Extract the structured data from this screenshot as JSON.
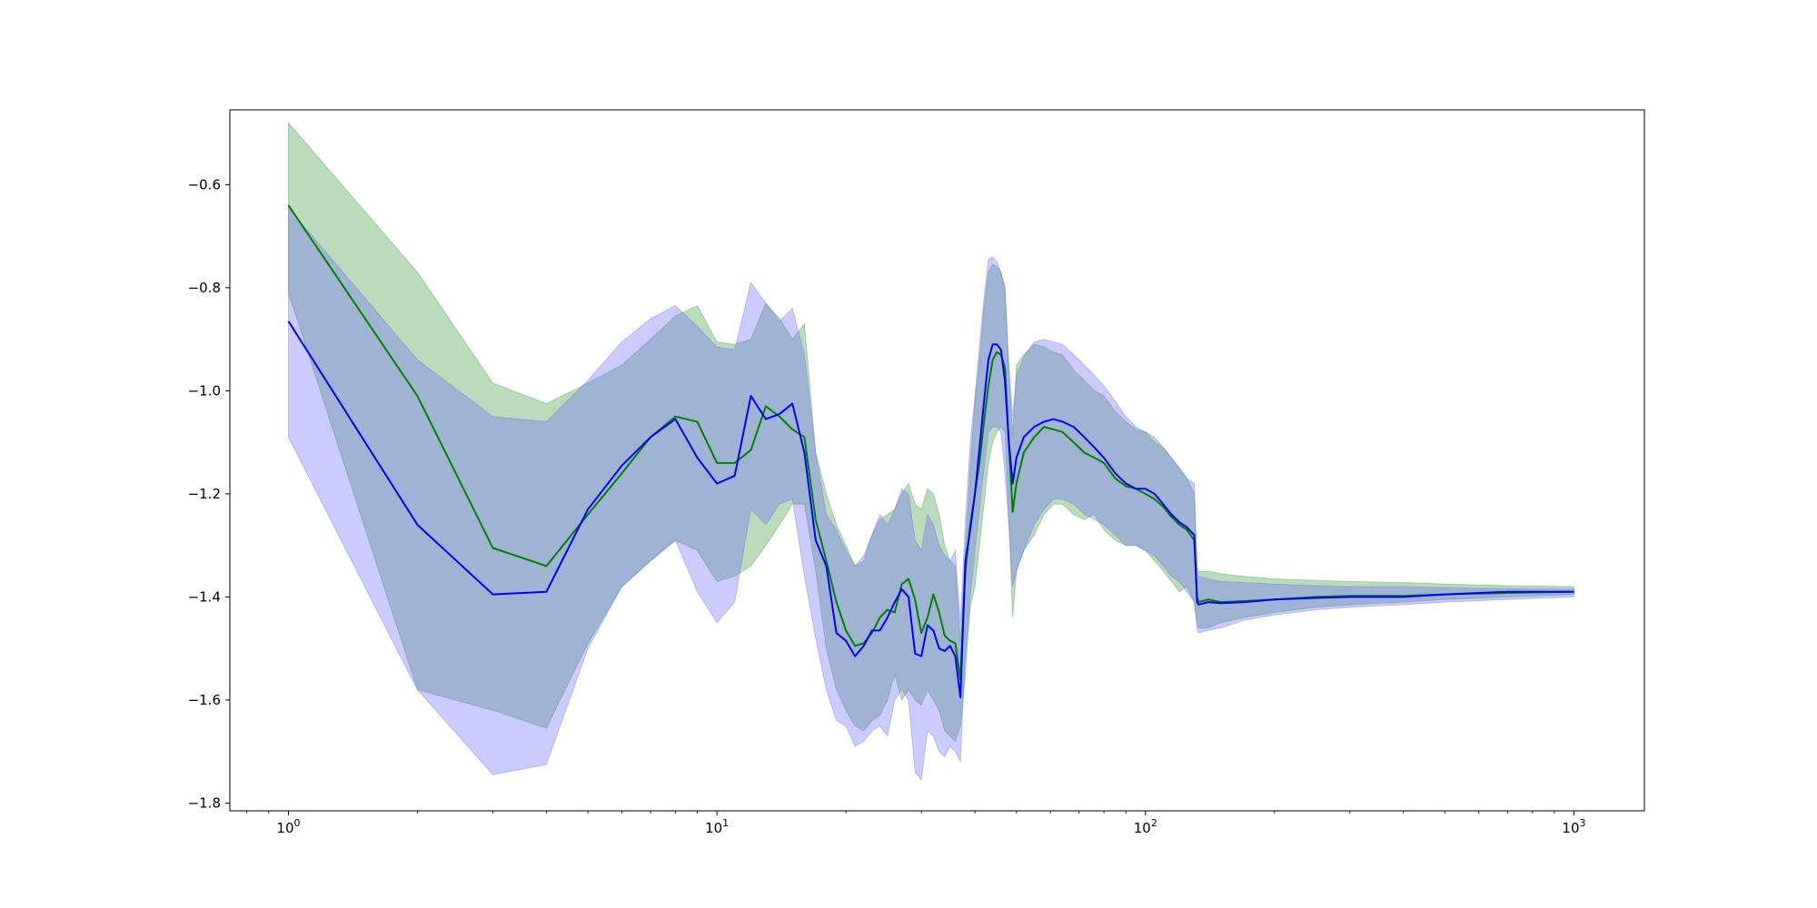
{
  "chart_data": {
    "type": "line",
    "title": "",
    "xlabel": "",
    "ylabel": "",
    "xscale": "log",
    "xlim": [
      0.73,
      1460
    ],
    "ylim": [
      -1.815,
      -0.455
    ],
    "grid": false,
    "yticks": [
      -0.6,
      -0.8,
      -1.0,
      -1.2,
      -1.4,
      -1.6,
      -1.8
    ],
    "ytick_labels": [
      "−0.6",
      "−0.8",
      "−1.0",
      "−1.2",
      "−1.4",
      "−1.6",
      "−1.8"
    ],
    "xticks": [
      {
        "value": 1,
        "base": "10",
        "exp": "0"
      },
      {
        "value": 10,
        "base": "10",
        "exp": "1"
      },
      {
        "value": 100,
        "base": "10",
        "exp": "2"
      },
      {
        "value": 1000,
        "base": "10",
        "exp": "3"
      }
    ],
    "series": [
      {
        "color": "#008000",
        "band_color": "#3a9a3a",
        "x": [
          1,
          2,
          3,
          4,
          5,
          6,
          7,
          8,
          9,
          10,
          11,
          12,
          13,
          14,
          15,
          16,
          17,
          18,
          19,
          20,
          21,
          22,
          23,
          24,
          25,
          26,
          27,
          28,
          29,
          30,
          31,
          32,
          33,
          34,
          35,
          36,
          37,
          38,
          39,
          40,
          41,
          42,
          43,
          44,
          45,
          46,
          47,
          48,
          49,
          50,
          52,
          55,
          58,
          61,
          64,
          68,
          72,
          76,
          80,
          85,
          90,
          95,
          100,
          105,
          110,
          115,
          120,
          125,
          130,
          132,
          133,
          140,
          150,
          170,
          200,
          250,
          300,
          400,
          500,
          700,
          1000
        ],
        "y": [
          -0.64,
          -1.01,
          -1.305,
          -1.34,
          -1.24,
          -1.16,
          -1.09,
          -1.05,
          -1.06,
          -1.14,
          -1.14,
          -1.115,
          -1.03,
          -1.05,
          -1.075,
          -1.09,
          -1.25,
          -1.33,
          -1.41,
          -1.465,
          -1.495,
          -1.49,
          -1.47,
          -1.44,
          -1.425,
          -1.43,
          -1.375,
          -1.365,
          -1.405,
          -1.47,
          -1.44,
          -1.395,
          -1.43,
          -1.475,
          -1.485,
          -1.49,
          -1.56,
          -1.35,
          -1.26,
          -1.2,
          -1.14,
          -1.06,
          -0.99,
          -0.94,
          -0.925,
          -0.93,
          -0.955,
          -1.1,
          -1.235,
          -1.18,
          -1.12,
          -1.09,
          -1.07,
          -1.075,
          -1.08,
          -1.1,
          -1.12,
          -1.13,
          -1.14,
          -1.17,
          -1.185,
          -1.19,
          -1.2,
          -1.21,
          -1.225,
          -1.245,
          -1.26,
          -1.27,
          -1.29,
          -1.4,
          -1.41,
          -1.405,
          -1.41,
          -1.408,
          -1.405,
          -1.4,
          -1.398,
          -1.398,
          -1.395,
          -1.392,
          -1.39
        ],
        "y_low": [
          -0.81,
          -1.58,
          -1.62,
          -1.655,
          -1.49,
          -1.38,
          -1.33,
          -1.29,
          -1.31,
          -1.37,
          -1.36,
          -1.34,
          -1.3,
          -1.26,
          -1.22,
          -1.22,
          -1.35,
          -1.5,
          -1.58,
          -1.62,
          -1.65,
          -1.66,
          -1.64,
          -1.63,
          -1.6,
          -1.55,
          -1.6,
          -1.58,
          -1.6,
          -1.61,
          -1.58,
          -1.6,
          -1.62,
          -1.66,
          -1.67,
          -1.68,
          -1.65,
          -1.55,
          -1.42,
          -1.38,
          -1.3,
          -1.22,
          -1.14,
          -1.1,
          -1.08,
          -1.07,
          -1.08,
          -1.25,
          -1.44,
          -1.35,
          -1.31,
          -1.28,
          -1.24,
          -1.22,
          -1.22,
          -1.24,
          -1.25,
          -1.24,
          -1.27,
          -1.29,
          -1.3,
          -1.3,
          -1.31,
          -1.33,
          -1.35,
          -1.37,
          -1.39,
          -1.38,
          -1.41,
          -1.45,
          -1.46,
          -1.46,
          -1.45,
          -1.44,
          -1.43,
          -1.42,
          -1.415,
          -1.41,
          -1.405,
          -1.4,
          -1.395
        ],
        "y_high": [
          -0.48,
          -0.77,
          -0.985,
          -1.025,
          -0.985,
          -0.95,
          -0.9,
          -0.855,
          -0.835,
          -0.905,
          -0.91,
          -0.9,
          -0.83,
          -0.86,
          -0.9,
          -0.87,
          -1.12,
          -1.2,
          -1.26,
          -1.3,
          -1.34,
          -1.33,
          -1.28,
          -1.25,
          -1.24,
          -1.23,
          -1.2,
          -1.18,
          -1.22,
          -1.23,
          -1.19,
          -1.2,
          -1.24,
          -1.3,
          -1.33,
          -1.34,
          -1.49,
          -1.3,
          -1.15,
          -1.02,
          -0.94,
          -0.84,
          -0.77,
          -0.755,
          -0.76,
          -0.77,
          -0.8,
          -0.96,
          -1.09,
          -0.95,
          -0.93,
          -0.91,
          -0.915,
          -0.925,
          -0.93,
          -0.96,
          -0.98,
          -1.0,
          -1.01,
          -1.04,
          -1.06,
          -1.075,
          -1.08,
          -1.09,
          -1.11,
          -1.13,
          -1.15,
          -1.17,
          -1.2,
          -1.34,
          -1.35,
          -1.35,
          -1.355,
          -1.36,
          -1.365,
          -1.368,
          -1.37,
          -1.372,
          -1.375,
          -1.378,
          -1.38
        ]
      },
      {
        "color": "#0000ff",
        "band_color": "#6b6bff",
        "x": [
          1,
          2,
          3,
          4,
          5,
          6,
          7,
          8,
          9,
          10,
          11,
          12,
          13,
          14,
          15,
          16,
          17,
          18,
          19,
          20,
          21,
          22,
          23,
          24,
          25,
          26,
          27,
          28,
          29,
          30,
          31,
          32,
          33,
          34,
          35,
          36,
          37,
          38,
          39,
          40,
          41,
          42,
          43,
          44,
          45,
          46,
          47,
          48,
          49,
          50,
          52,
          55,
          58,
          61,
          64,
          68,
          72,
          76,
          80,
          85,
          90,
          95,
          100,
          105,
          110,
          115,
          120,
          125,
          130,
          132,
          133,
          140,
          150,
          170,
          200,
          250,
          300,
          400,
          500,
          700,
          1000
        ],
        "y": [
          -0.865,
          -1.26,
          -1.395,
          -1.39,
          -1.23,
          -1.145,
          -1.09,
          -1.055,
          -1.13,
          -1.18,
          -1.165,
          -1.01,
          -1.055,
          -1.045,
          -1.025,
          -1.12,
          -1.29,
          -1.34,
          -1.47,
          -1.485,
          -1.515,
          -1.495,
          -1.465,
          -1.465,
          -1.44,
          -1.41,
          -1.385,
          -1.4,
          -1.51,
          -1.515,
          -1.455,
          -1.465,
          -1.5,
          -1.505,
          -1.495,
          -1.515,
          -1.595,
          -1.33,
          -1.27,
          -1.2,
          -1.11,
          -1.02,
          -0.94,
          -0.91,
          -0.91,
          -0.92,
          -0.98,
          -1.1,
          -1.18,
          -1.13,
          -1.09,
          -1.07,
          -1.06,
          -1.055,
          -1.06,
          -1.07,
          -1.09,
          -1.11,
          -1.13,
          -1.16,
          -1.18,
          -1.19,
          -1.19,
          -1.2,
          -1.22,
          -1.24,
          -1.255,
          -1.265,
          -1.28,
          -1.41,
          -1.415,
          -1.41,
          -1.412,
          -1.41,
          -1.405,
          -1.402,
          -1.4,
          -1.4,
          -1.395,
          -1.39,
          -1.39
        ],
        "y_low": [
          -1.09,
          -1.58,
          -1.745,
          -1.725,
          -1.5,
          -1.38,
          -1.33,
          -1.29,
          -1.39,
          -1.45,
          -1.41,
          -1.23,
          -1.26,
          -1.22,
          -1.21,
          -1.36,
          -1.48,
          -1.58,
          -1.64,
          -1.65,
          -1.69,
          -1.68,
          -1.66,
          -1.65,
          -1.67,
          -1.6,
          -1.58,
          -1.6,
          -1.74,
          -1.755,
          -1.66,
          -1.67,
          -1.7,
          -1.71,
          -1.69,
          -1.7,
          -1.72,
          -1.51,
          -1.4,
          -1.31,
          -1.23,
          -1.15,
          -1.08,
          -1.07,
          -1.07,
          -1.08,
          -1.16,
          -1.26,
          -1.38,
          -1.35,
          -1.31,
          -1.26,
          -1.23,
          -1.21,
          -1.21,
          -1.22,
          -1.24,
          -1.25,
          -1.26,
          -1.28,
          -1.3,
          -1.3,
          -1.31,
          -1.32,
          -1.34,
          -1.36,
          -1.37,
          -1.39,
          -1.41,
          -1.46,
          -1.47,
          -1.465,
          -1.46,
          -1.445,
          -1.435,
          -1.425,
          -1.42,
          -1.415,
          -1.41,
          -1.405,
          -1.4
        ],
        "y_high": [
          -0.645,
          -0.94,
          -1.05,
          -1.06,
          -0.98,
          -0.905,
          -0.86,
          -0.835,
          -0.875,
          -0.915,
          -0.92,
          -0.79,
          -0.83,
          -0.865,
          -0.84,
          -0.93,
          -1.12,
          -1.24,
          -1.27,
          -1.31,
          -1.34,
          -1.32,
          -1.28,
          -1.24,
          -1.26,
          -1.23,
          -1.19,
          -1.2,
          -1.29,
          -1.31,
          -1.24,
          -1.26,
          -1.3,
          -1.32,
          -1.33,
          -1.31,
          -1.45,
          -1.25,
          -1.1,
          -1.01,
          -0.91,
          -0.82,
          -0.745,
          -0.74,
          -0.75,
          -0.77,
          -0.8,
          -0.95,
          -1.05,
          -0.97,
          -0.935,
          -0.905,
          -0.9,
          -0.905,
          -0.91,
          -0.93,
          -0.95,
          -0.97,
          -0.99,
          -1.02,
          -1.05,
          -1.07,
          -1.08,
          -1.1,
          -1.11,
          -1.13,
          -1.15,
          -1.17,
          -1.18,
          -1.35,
          -1.36,
          -1.365,
          -1.37,
          -1.372,
          -1.375,
          -1.378,
          -1.38,
          -1.38,
          -1.382,
          -1.384,
          -1.385
        ]
      }
    ]
  }
}
